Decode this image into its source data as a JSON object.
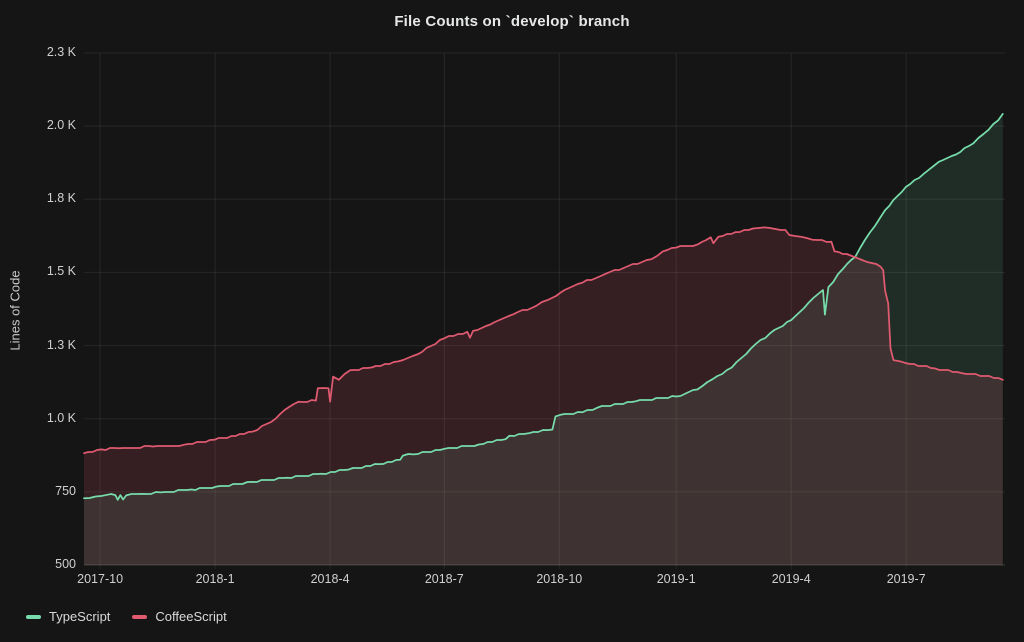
{
  "title": "File Counts on `develop` branch",
  "y_axis": {
    "label": "Lines of Code",
    "ticks": [
      {
        "value": 500,
        "label": "500"
      },
      {
        "value": 750,
        "label": "750"
      },
      {
        "value": 1000,
        "label": "1.0 K"
      },
      {
        "value": 1250,
        "label": "1.3 K"
      },
      {
        "value": 1500,
        "label": "1.5 K"
      },
      {
        "value": 1750,
        "label": "1.8 K"
      },
      {
        "value": 2000,
        "label": "2.0 K"
      },
      {
        "value": 2250,
        "label": "2.3 K"
      }
    ]
  },
  "x_axis": {
    "ticks": [
      {
        "t": 0.42,
        "label": "2017-10"
      },
      {
        "t": 3.42,
        "label": "2018-1"
      },
      {
        "t": 6.42,
        "label": "2018-4"
      },
      {
        "t": 9.4,
        "label": "2018-7"
      },
      {
        "t": 12.4,
        "label": "2018-10"
      },
      {
        "t": 15.45,
        "label": "2019-1"
      },
      {
        "t": 18.45,
        "label": "2019-4"
      },
      {
        "t": 21.45,
        "label": "2019-7"
      }
    ]
  },
  "colors": {
    "background": "#151515",
    "grid": "rgba(255,255,255,0.08)",
    "axis_line": "rgba(255,255,255,0.10)",
    "tick_text": "#cfd0d1",
    "title_text": "#e6e7e8",
    "typescript_green": "#77dcab",
    "coffeescript_red": "#e05a70"
  },
  "chart_data": {
    "type": "area",
    "title": "File Counts on `develop` branch",
    "xlabel": "",
    "ylabel": "Lines of Code",
    "x_unit": "months since 2017-09-18",
    "ylim": [
      500,
      2250
    ],
    "x_tick_labels": [
      "2017-10",
      "2018-1",
      "2018-4",
      "2018-7",
      "2018-10",
      "2019-1",
      "2019-4",
      "2019-7"
    ],
    "y_tick_labels": [
      "500",
      "750",
      "1.0 K",
      "1.3 K",
      "1.5 K",
      "1.8 K",
      "2.0 K",
      "2.3 K"
    ],
    "legend_position": "bottom-left",
    "grid": true,
    "series": [
      {
        "name": "TypeScript",
        "color": "#77dcab",
        "fill_opacity": 0.12,
        "points": [
          [
            0,
            728
          ],
          [
            0.3,
            734
          ],
          [
            0.6,
            740
          ],
          [
            0.82,
            739
          ],
          [
            0.88,
            723
          ],
          [
            0.95,
            739
          ],
          [
            1.02,
            724
          ],
          [
            1.1,
            738
          ],
          [
            1.5,
            743
          ],
          [
            2.0,
            748
          ],
          [
            2.8,
            758
          ],
          [
            3.45,
            768
          ],
          [
            4.0,
            777
          ],
          [
            4.4,
            784
          ],
          [
            5.3,
            798
          ],
          [
            6.2,
            812
          ],
          [
            6.9,
            826
          ],
          [
            7.7,
            845
          ],
          [
            8.25,
            860
          ],
          [
            8.32,
            874
          ],
          [
            8.6,
            878
          ],
          [
            9.4,
            897
          ],
          [
            10.3,
            912
          ],
          [
            11.0,
            930
          ],
          [
            11.1,
            942
          ],
          [
            11.6,
            950
          ],
          [
            12.1,
            961
          ],
          [
            12.22,
            963
          ],
          [
            12.3,
            1008
          ],
          [
            12.42,
            1013
          ],
          [
            13.0,
            1022
          ],
          [
            13.4,
            1038
          ],
          [
            14.4,
            1060
          ],
          [
            15.45,
            1076
          ],
          [
            16.0,
            1100
          ],
          [
            16.4,
            1135
          ],
          [
            16.9,
            1175
          ],
          [
            17.4,
            1240
          ],
          [
            17.9,
            1292
          ],
          [
            18.45,
            1337
          ],
          [
            18.9,
            1396
          ],
          [
            19.28,
            1440
          ],
          [
            19.33,
            1356
          ],
          [
            19.42,
            1450
          ],
          [
            19.8,
            1512
          ],
          [
            20.12,
            1553
          ],
          [
            20.5,
            1636
          ],
          [
            20.9,
            1713
          ],
          [
            21.44,
            1792
          ],
          [
            21.9,
            1836
          ],
          [
            22.3,
            1878
          ],
          [
            22.75,
            1903
          ],
          [
            23.2,
            1941
          ],
          [
            23.6,
            1988
          ],
          [
            23.85,
            2020
          ],
          [
            23.97,
            2042
          ]
        ]
      },
      {
        "name": "CoffeeScript",
        "color": "#e05a70",
        "fill_opacity": 0.16,
        "points": [
          [
            0,
            882
          ],
          [
            0.45,
            895
          ],
          [
            0.9,
            899
          ],
          [
            1.8,
            905
          ],
          [
            2.6,
            911
          ],
          [
            3.4,
            928
          ],
          [
            4.4,
            956
          ],
          [
            5.0,
            1000
          ],
          [
            5.35,
            1040
          ],
          [
            5.6,
            1058
          ],
          [
            6.05,
            1062
          ],
          [
            6.1,
            1104
          ],
          [
            6.38,
            1104
          ],
          [
            6.42,
            1058
          ],
          [
            6.5,
            1144
          ],
          [
            6.65,
            1133
          ],
          [
            6.95,
            1166
          ],
          [
            7.5,
            1175
          ],
          [
            8.2,
            1196
          ],
          [
            8.7,
            1220
          ],
          [
            9.4,
            1275
          ],
          [
            10.0,
            1297
          ],
          [
            10.07,
            1277
          ],
          [
            10.15,
            1300
          ],
          [
            10.6,
            1322
          ],
          [
            11.2,
            1357
          ],
          [
            11.8,
            1386
          ],
          [
            12.1,
            1406
          ],
          [
            12.42,
            1430
          ],
          [
            13.0,
            1465
          ],
          [
            13.6,
            1495
          ],
          [
            14.2,
            1522
          ],
          [
            14.8,
            1545
          ],
          [
            15.1,
            1572
          ],
          [
            15.45,
            1585
          ],
          [
            16.0,
            1595
          ],
          [
            16.35,
            1620
          ],
          [
            16.42,
            1600
          ],
          [
            16.55,
            1622
          ],
          [
            17.0,
            1638
          ],
          [
            17.45,
            1650
          ],
          [
            17.75,
            1654
          ],
          [
            18.05,
            1648
          ],
          [
            18.3,
            1645
          ],
          [
            18.4,
            1628
          ],
          [
            18.7,
            1622
          ],
          [
            19.0,
            1612
          ],
          [
            19.5,
            1605
          ],
          [
            19.58,
            1572
          ],
          [
            19.9,
            1563
          ],
          [
            20.17,
            1549
          ],
          [
            20.56,
            1532
          ],
          [
            20.78,
            1520
          ],
          [
            20.85,
            1508
          ],
          [
            20.9,
            1438
          ],
          [
            20.98,
            1394
          ],
          [
            21.04,
            1240
          ],
          [
            21.12,
            1200
          ],
          [
            21.3,
            1196
          ],
          [
            21.44,
            1190
          ],
          [
            22.2,
            1172
          ],
          [
            22.9,
            1156
          ],
          [
            23.5,
            1146
          ],
          [
            23.97,
            1133
          ]
        ]
      }
    ]
  }
}
